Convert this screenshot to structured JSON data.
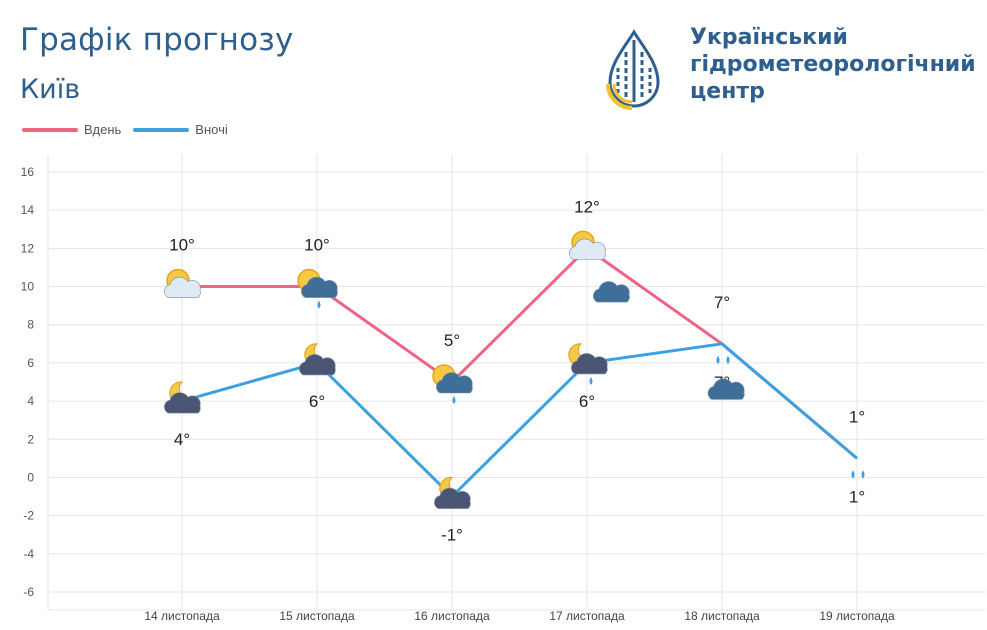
{
  "header": {
    "title": "Графік прогнозу",
    "city": "Київ"
  },
  "logo": {
    "line1": "Український",
    "line2": "гідрометеорологічний",
    "line3": "центр"
  },
  "legend": {
    "day_label": "Вдень",
    "night_label": "Вночі"
  },
  "colors": {
    "day": "#ee6482",
    "night": "#3ca1e0",
    "title": "#2e5f8e",
    "grid": "#e6e6e6"
  },
  "chart_data": {
    "type": "line",
    "categories": [
      "14 листопада",
      "15 листопада",
      "16 листопада",
      "17 листопада",
      "18 листопада",
      "19 листопада"
    ],
    "ylim": [
      -6,
      16
    ],
    "yticks": [
      16,
      14,
      12,
      10,
      8,
      6,
      4,
      2,
      0,
      -2,
      -4,
      -6
    ],
    "grid": true,
    "legend_position": "top-left",
    "series": [
      {
        "name": "Вдень",
        "values": [
          10,
          10,
          5,
          12,
          7,
          1
        ],
        "labels": [
          "10°",
          "10°",
          "5°",
          "12°",
          "7°",
          "1°"
        ],
        "icons": [
          "sun-cloud-icon",
          "sun-cloud-rain-icon",
          "sun-cloud-rain-icon",
          "sun-cloud-icon",
          "cloud-rain-icon",
          "cloud-rain-icon"
        ]
      },
      {
        "name": "Вночі",
        "values": [
          4,
          6,
          -1,
          6,
          7,
          1
        ],
        "labels": [
          "4°",
          "6°",
          "-1°",
          "6°",
          "7°",
          "1°"
        ],
        "icons": [
          "moon-cloud-icon",
          "moon-cloud-icon",
          "moon-cloud-icon",
          "moon-cloud-rain-icon",
          "cloud-rain-icon",
          "cloud-rain-icon"
        ]
      }
    ]
  }
}
